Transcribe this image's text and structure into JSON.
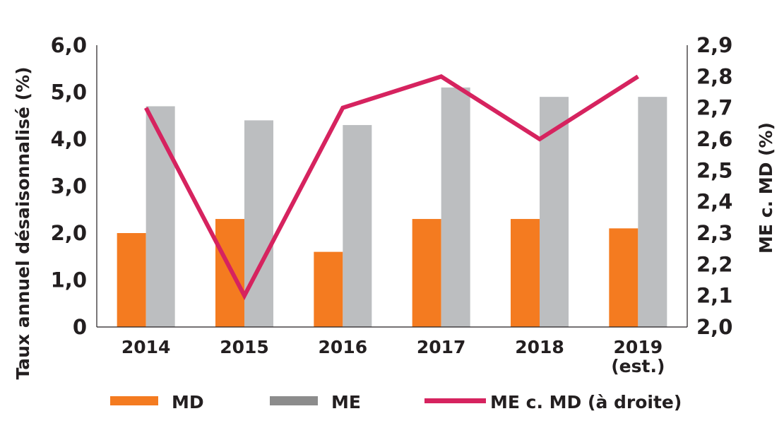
{
  "chart_data": {
    "type": "bar",
    "categories": [
      "2014",
      "2015",
      "2016",
      "2017",
      "2018",
      "2019"
    ],
    "category_sublabels": [
      "",
      "",
      "",
      "",
      "",
      "(est.)"
    ],
    "series": [
      {
        "name": "MD",
        "type": "bar",
        "axis": "left",
        "color": "#f47b20",
        "values": [
          2.0,
          2.3,
          1.6,
          2.3,
          2.3,
          2.1
        ]
      },
      {
        "name": "ME",
        "type": "bar",
        "axis": "left",
        "color": "#bcbec0",
        "values": [
          4.7,
          4.4,
          4.3,
          5.1,
          4.9,
          4.9
        ]
      },
      {
        "name": "ME c. MD (à droite)",
        "type": "line",
        "axis": "right",
        "color": "#d6235f",
        "values": [
          2.7,
          2.1,
          2.7,
          2.8,
          2.6,
          2.8
        ]
      }
    ],
    "ylabel": "Taux annuel désaisonnalisé (%)",
    "y2label": "ME c. MD (%)",
    "ylim": [
      0,
      6
    ],
    "y2lim": [
      2.0,
      2.9
    ],
    "yticks": [
      "0",
      "1,0",
      "2,0",
      "3,0",
      "4,0",
      "5,0",
      "6,0"
    ],
    "y2ticks": [
      "2,0",
      "2,1",
      "2,2",
      "2,3",
      "2,4",
      "2,5",
      "2,6",
      "2,7",
      "2,8",
      "2,9"
    ],
    "legend": [
      {
        "label": "MD",
        "color": "#f47b20",
        "kind": "bar"
      },
      {
        "label": "ME",
        "color": "#8c8c8c",
        "kind": "bar"
      },
      {
        "label": "ME c. MD (à droite)",
        "color": "#d6235f",
        "kind": "line"
      }
    ],
    "legend_position": "bottom",
    "grid": false
  }
}
